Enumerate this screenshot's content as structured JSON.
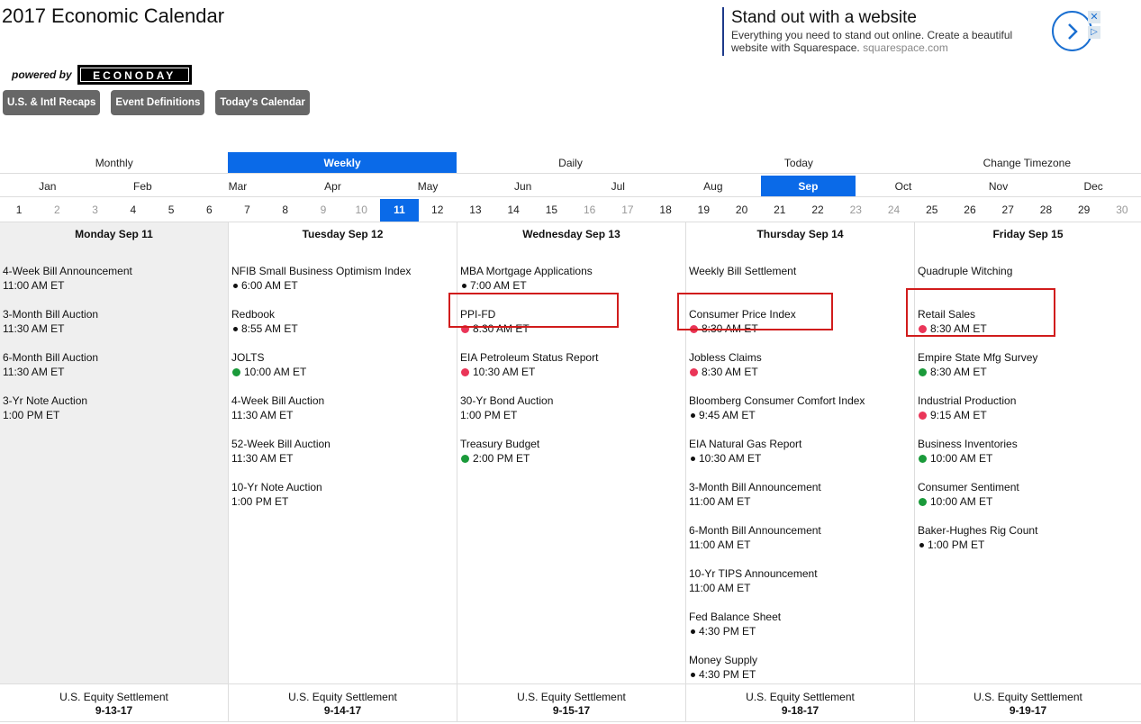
{
  "page": {
    "title": "2017 Economic Calendar",
    "powered_by": "powered by",
    "logo": "ECONODAY"
  },
  "nav_buttons": [
    "U.S. & Intl Recaps",
    "Event Definitions",
    "Today's Calendar"
  ],
  "ad": {
    "title": "Stand out with a website",
    "body": "Everything you need to stand out online. Create a beautiful website with Squarespace.",
    "domain": "squarespace.com"
  },
  "views": [
    {
      "label": "Monthly",
      "active": false
    },
    {
      "label": "Weekly",
      "active": true
    },
    {
      "label": "Daily",
      "active": false
    },
    {
      "label": "Today",
      "active": false
    },
    {
      "label": "Change Timezone",
      "active": false
    }
  ],
  "months": [
    "Jan",
    "Feb",
    "Mar",
    "Apr",
    "May",
    "Jun",
    "Jul",
    "Aug",
    "Sep",
    "Oct",
    "Nov",
    "Dec"
  ],
  "active_month": "Sep",
  "days": [
    {
      "d": "1",
      "s": "normal"
    },
    {
      "d": "2",
      "s": "off"
    },
    {
      "d": "3",
      "s": "off"
    },
    {
      "d": "4",
      "s": "normal"
    },
    {
      "d": "5",
      "s": "normal"
    },
    {
      "d": "6",
      "s": "normal"
    },
    {
      "d": "7",
      "s": "normal"
    },
    {
      "d": "8",
      "s": "normal"
    },
    {
      "d": "9",
      "s": "off"
    },
    {
      "d": "10",
      "s": "off"
    },
    {
      "d": "11",
      "s": "active"
    },
    {
      "d": "12",
      "s": "normal"
    },
    {
      "d": "13",
      "s": "normal"
    },
    {
      "d": "14",
      "s": "normal"
    },
    {
      "d": "15",
      "s": "normal"
    },
    {
      "d": "16",
      "s": "off"
    },
    {
      "d": "17",
      "s": "off"
    },
    {
      "d": "18",
      "s": "normal"
    },
    {
      "d": "19",
      "s": "normal"
    },
    {
      "d": "20",
      "s": "normal"
    },
    {
      "d": "21",
      "s": "normal"
    },
    {
      "d": "22",
      "s": "normal"
    },
    {
      "d": "23",
      "s": "off"
    },
    {
      "d": "24",
      "s": "off"
    },
    {
      "d": "25",
      "s": "normal"
    },
    {
      "d": "26",
      "s": "normal"
    },
    {
      "d": "27",
      "s": "normal"
    },
    {
      "d": "28",
      "s": "normal"
    },
    {
      "d": "29",
      "s": "normal"
    },
    {
      "d": "30",
      "s": "off"
    }
  ],
  "week": [
    {
      "day": "Monday Sep 11",
      "events": [
        {
          "name": "4-Week Bill Announcement",
          "time": "11:00 AM ET",
          "dot": ""
        },
        {
          "name": "3-Month Bill Auction",
          "time": "11:30 AM ET",
          "dot": ""
        },
        {
          "name": "6-Month Bill Auction",
          "time": "11:30 AM ET",
          "dot": ""
        },
        {
          "name": "3-Yr Note Auction",
          "time": "1:00 PM ET",
          "dot": ""
        }
      ],
      "footer": {
        "label": "U.S. Equity Settlement",
        "date": "9-13-17"
      }
    },
    {
      "day": "Tuesday Sep 12",
      "events": [
        {
          "name": "NFIB Small Business Optimism Index",
          "time": "6:00 AM ET",
          "dot": "black"
        },
        {
          "name": "Redbook",
          "time": "8:55 AM ET",
          "dot": "black"
        },
        {
          "name": "JOLTS",
          "time": "10:00 AM ET",
          "dot": "green"
        },
        {
          "name": "4-Week Bill Auction",
          "time": "11:30 AM ET",
          "dot": ""
        },
        {
          "name": "52-Week Bill Auction",
          "time": "11:30 AM ET",
          "dot": ""
        },
        {
          "name": "10-Yr Note Auction",
          "time": "1:00 PM ET",
          "dot": ""
        }
      ],
      "footer": {
        "label": "U.S. Equity Settlement",
        "date": "9-14-17"
      }
    },
    {
      "day": "Wednesday Sep 13",
      "events": [
        {
          "name": "MBA Mortgage Applications",
          "time": "7:00 AM ET",
          "dot": "black"
        },
        {
          "name": "PPI-FD",
          "time": "8:30 AM ET",
          "dot": "red",
          "highlight": true
        },
        {
          "name": "EIA Petroleum Status Report",
          "time": "10:30 AM ET",
          "dot": "red"
        },
        {
          "name": "30-Yr Bond Auction",
          "time": "1:00 PM ET",
          "dot": ""
        },
        {
          "name": "Treasury Budget",
          "time": "2:00 PM ET",
          "dot": "green"
        }
      ],
      "footer": {
        "label": "U.S. Equity Settlement",
        "date": "9-15-17"
      }
    },
    {
      "day": "Thursday Sep 14",
      "events": [
        {
          "name": "Weekly Bill Settlement",
          "time": "",
          "dot": ""
        },
        {
          "name": "Consumer Price Index",
          "time": "8:30 AM ET",
          "dot": "red",
          "highlight": true
        },
        {
          "name": "Jobless Claims",
          "time": "8:30 AM ET",
          "dot": "red"
        },
        {
          "name": "Bloomberg Consumer Comfort Index",
          "time": "9:45 AM ET",
          "dot": "black"
        },
        {
          "name": "EIA Natural Gas Report",
          "time": "10:30 AM ET",
          "dot": "black"
        },
        {
          "name": "3-Month Bill Announcement",
          "time": "11:00 AM ET",
          "dot": ""
        },
        {
          "name": "6-Month Bill Announcement",
          "time": "11:00 AM ET",
          "dot": ""
        },
        {
          "name": "10-Yr TIPS Announcement",
          "time": "11:00 AM ET",
          "dot": ""
        },
        {
          "name": "Fed Balance Sheet",
          "time": "4:30 PM ET",
          "dot": "black"
        },
        {
          "name": "Money Supply",
          "time": "4:30 PM ET",
          "dot": "black"
        }
      ],
      "footer": {
        "label": "U.S. Equity Settlement",
        "date": "9-18-17"
      }
    },
    {
      "day": "Friday Sep 15",
      "events": [
        {
          "name": "Quadruple Witching",
          "time": "",
          "dot": ""
        },
        {
          "name": "Retail Sales",
          "time": "8:30 AM ET",
          "dot": "red",
          "highlight": true
        },
        {
          "name": "Empire State Mfg Survey",
          "time": "8:30 AM ET",
          "dot": "green"
        },
        {
          "name": "Industrial Production",
          "time": "9:15 AM ET",
          "dot": "red"
        },
        {
          "name": "Business Inventories",
          "time": "10:00 AM ET",
          "dot": "green"
        },
        {
          "name": "Consumer Sentiment",
          "time": "10:00 AM ET",
          "dot": "green"
        },
        {
          "name": "Baker-Hughes Rig Count",
          "time": "1:00 PM ET",
          "dot": "black"
        }
      ],
      "footer": {
        "label": "U.S. Equity Settlement",
        "date": "9-19-17"
      }
    }
  ]
}
